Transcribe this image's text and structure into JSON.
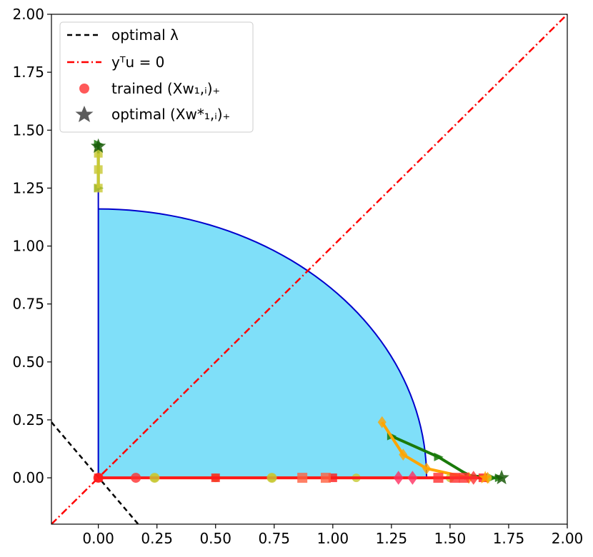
{
  "chart_data": {
    "type": "line",
    "xlim": [
      -0.2,
      2.0
    ],
    "ylim": [
      -0.2,
      2.0
    ],
    "grid": false,
    "legend_placement": "top-left",
    "x_ticks": [
      "0.00",
      "0.25",
      "0.50",
      "0.75",
      "1.00",
      "1.25",
      "1.50",
      "1.75",
      "2.00"
    ],
    "y_ticks": [
      "0.00",
      "0.25",
      "0.50",
      "0.75",
      "1.00",
      "1.25",
      "1.50",
      "1.75",
      "2.00"
    ],
    "legend": [
      {
        "label": "optimal λ",
        "style": "dashed",
        "color": "#000000"
      },
      {
        "label": "yᵀu = 0",
        "style": "dashdot",
        "color": "#ff0000"
      },
      {
        "label": "trained (Xw₁,ᵢ)₊",
        "style": "circle",
        "color": "#ff3030"
      },
      {
        "label": "optimal (Xw*₁,ᵢ)₊",
        "style": "star",
        "color": "#404040"
      }
    ],
    "colors": {
      "region_fill": "#7fdff9",
      "region_edge": "#0000cc",
      "green": "#1a7a0a",
      "orange": "#ffa500",
      "yellow": "#c8c832",
      "red": "#ff1a1a"
    },
    "region": {
      "boundary_x0": 0.0,
      "top_y": 1.16,
      "arc_end_x": 1.4,
      "arc_end_y": 0.0
    },
    "optimal_lambda_line": {
      "points": [
        [
          -0.2,
          0.24
        ],
        [
          0.17,
          -0.2
        ]
      ]
    },
    "ytu_zero_line": {
      "points": [
        [
          -0.2,
          -0.2
        ],
        [
          2.0,
          2.0
        ]
      ]
    },
    "series": [
      {
        "color": "green",
        "marker": "triangle",
        "points": [
          [
            1.25,
            0.18
          ],
          [
            1.45,
            0.09
          ],
          [
            1.58,
            0.01
          ],
          [
            1.68,
            0.0
          ],
          [
            1.71,
            0.0
          ]
        ]
      },
      {
        "color": "orange",
        "marker": "diamond",
        "points": [
          [
            1.21,
            0.24
          ],
          [
            1.3,
            0.1
          ],
          [
            1.4,
            0.04
          ],
          [
            1.58,
            0.0
          ],
          [
            1.66,
            0.0
          ]
        ]
      },
      {
        "color": "yellow",
        "marker": "circle",
        "points": [
          [
            0.24,
            0.0
          ],
          [
            0.5,
            0.0
          ],
          [
            0.74,
            0.0
          ],
          [
            1.1,
            0.0
          ],
          [
            1.5,
            0.0
          ],
          [
            1.66,
            0.0
          ]
        ]
      },
      {
        "color": "red",
        "marker": "square",
        "points": [
          [
            1.64,
            0.0
          ],
          [
            1.0,
            0.0
          ],
          [
            0.5,
            0.0
          ],
          [
            0.0,
            0.0
          ]
        ]
      },
      {
        "color": "green",
        "marker": "triangle",
        "points": [
          [
            0.0,
            1.25
          ],
          [
            0.0,
            1.44
          ]
        ]
      },
      {
        "color": "yellow",
        "marker": "square",
        "points": [
          [
            0.0,
            1.25
          ],
          [
            0.0,
            1.33
          ],
          [
            0.0,
            1.4
          ]
        ]
      }
    ],
    "trained_points": [
      {
        "x": 0.16,
        "y": 0.0,
        "color": "#ff3030",
        "marker": "circle"
      },
      {
        "x": 0.24,
        "y": 0.0,
        "color": "#c8c832",
        "marker": "circle"
      },
      {
        "x": 0.74,
        "y": 0.0,
        "color": "#c8c832",
        "marker": "circle"
      },
      {
        "x": 0.87,
        "y": 0.0,
        "color": "#ff6040",
        "marker": "square"
      },
      {
        "x": 0.97,
        "y": 0.0,
        "color": "#ff6040",
        "marker": "square"
      },
      {
        "x": 1.28,
        "y": 0.0,
        "color": "#ff3060",
        "marker": "diamond"
      },
      {
        "x": 1.34,
        "y": 0.0,
        "color": "#ff3060",
        "marker": "diamond"
      },
      {
        "x": 1.45,
        "y": 0.0,
        "color": "#ff3030",
        "marker": "square"
      },
      {
        "x": 1.52,
        "y": 0.0,
        "color": "#ff3030",
        "marker": "square"
      },
      {
        "x": 1.56,
        "y": 0.0,
        "color": "#ff3030",
        "marker": "square"
      },
      {
        "x": 1.6,
        "y": 0.0,
        "color": "#ff3030",
        "marker": "diamond"
      },
      {
        "x": 1.65,
        "y": 0.0,
        "color": "#ffa500",
        "marker": "star"
      },
      {
        "x": 0.0,
        "y": 0.0,
        "color": "#ff1a1a",
        "marker": "circle"
      }
    ],
    "optimal_points": [
      {
        "x": 1.72,
        "y": 0.0
      },
      {
        "x": 0.0,
        "y": 1.43
      }
    ]
  }
}
